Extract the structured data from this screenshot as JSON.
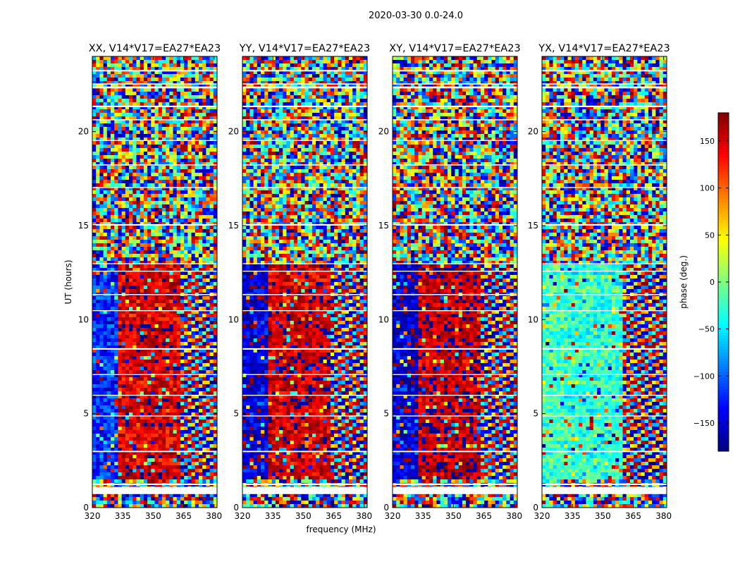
{
  "figure": {
    "suptitle": "2020-03-30 0.0-24.0",
    "xlabel": "frequency (MHz)",
    "ylabel": "UT (hours)"
  },
  "chart_data": [
    {
      "type": "heatmap",
      "title": "XX, V14*V17=EA27*EA23",
      "x_range": [
        320,
        381.5
      ],
      "y_range": [
        0,
        24
      ],
      "x_ticks": [
        "320",
        "335",
        "350",
        "365",
        "380"
      ],
      "y_ticks": [
        "0",
        "5",
        "10",
        "15",
        "20"
      ],
      "low_freq_phase_deg": -120,
      "mid_freq_phase_deg": 150,
      "coherent_hours": [
        1.5,
        13
      ],
      "freq_break_mhz": 363,
      "noise_hours": [
        13,
        24
      ]
    },
    {
      "type": "heatmap",
      "title": "YY, V14*V17=EA27*EA23",
      "x_range": [
        320,
        381.5
      ],
      "y_range": [
        0,
        24
      ],
      "x_ticks": [
        "320",
        "335",
        "350",
        "365",
        "380"
      ],
      "y_ticks": [
        "0",
        "5",
        "10",
        "15",
        "20"
      ],
      "low_freq_phase_deg": -150,
      "mid_freq_phase_deg": 155,
      "coherent_hours": [
        1.5,
        13
      ],
      "freq_break_mhz": 363,
      "noise_hours": [
        13,
        24
      ]
    },
    {
      "type": "heatmap",
      "title": "XY, V14*V17=EA27*EA23",
      "x_range": [
        320,
        381.5
      ],
      "y_range": [
        0,
        24
      ],
      "x_ticks": [
        "320",
        "335",
        "350",
        "365",
        "380"
      ],
      "y_ticks": [
        "0",
        "5",
        "10",
        "15",
        "20"
      ],
      "low_freq_phase_deg": -150,
      "mid_freq_phase_deg": 160,
      "coherent_hours": [
        1.5,
        13
      ],
      "freq_break_mhz": 363,
      "noise_hours": [
        13,
        24
      ]
    },
    {
      "type": "heatmap",
      "title": "YX, V14*V17=EA27*EA23",
      "x_range": [
        320,
        381.5
      ],
      "y_range": [
        0,
        24
      ],
      "x_ticks": [
        "320",
        "335",
        "350",
        "365",
        "380"
      ],
      "y_ticks": [
        "0",
        "5",
        "10",
        "15",
        "20"
      ],
      "low_freq_phase_deg": -20,
      "mid_freq_phase_deg": -30,
      "coherent_hours": [
        1.5,
        13
      ],
      "freq_break_mhz": 359,
      "noise_hours": [
        13,
        24
      ]
    }
  ],
  "colorbar": {
    "label": "phase (deg.)",
    "range": [
      -180,
      180
    ],
    "ticks": [
      {
        "value": 150,
        "label": "150"
      },
      {
        "value": 100,
        "label": "100"
      },
      {
        "value": 50,
        "label": "50"
      },
      {
        "value": 0,
        "label": "0"
      },
      {
        "value": -50,
        "label": "−50"
      },
      {
        "value": -100,
        "label": "−100"
      },
      {
        "value": -150,
        "label": "−150"
      }
    ],
    "colormap": "jet"
  },
  "flagged_hour_bands": [
    [
      0.72,
      1.1
    ],
    [
      1.2,
      1.28
    ],
    [
      2.95,
      3.02
    ],
    [
      4.85,
      4.9
    ],
    [
      5.95,
      6.0
    ],
    [
      7.05,
      7.1
    ],
    [
      8.4,
      8.48
    ],
    [
      10.45,
      10.5
    ],
    [
      11.3,
      11.36
    ],
    [
      12.55,
      12.6
    ],
    [
      12.95,
      13.0
    ],
    [
      15.0,
      15.08
    ],
    [
      17.0,
      17.05
    ],
    [
      18.2,
      18.26
    ],
    [
      19.5,
      19.55
    ],
    [
      20.6,
      20.66
    ],
    [
      21.3,
      21.38
    ],
    [
      22.3,
      22.4
    ],
    [
      22.5,
      22.56
    ],
    [
      23.2,
      23.28
    ]
  ],
  "colors": {
    "frame": "#000000",
    "background": "#ffffff"
  }
}
